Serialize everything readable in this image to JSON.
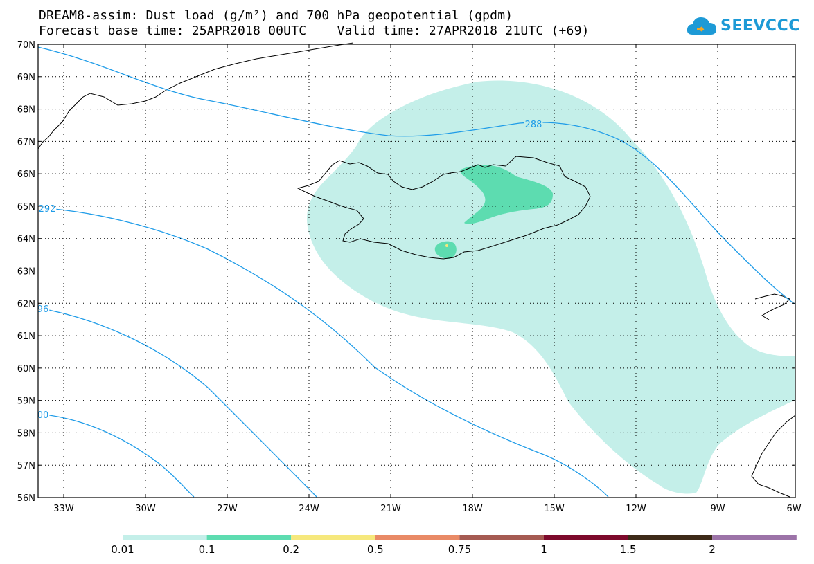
{
  "title": {
    "line1": "DREAM8-assim: Dust load (g/m²) and 700 hPa geopotential (gpdm)",
    "line2": "Forecast base time: 25APR2018 00UTC    Valid time: 27APR2018 21UTC (+69)"
  },
  "logo": {
    "text": "SEEVCCC",
    "icon": "cloud-icon",
    "color": "#1d9ad6"
  },
  "map": {
    "lat_labels": [
      "70N",
      "69N",
      "68N",
      "67N",
      "66N",
      "65N",
      "64N",
      "63N",
      "62N",
      "61N",
      "60N",
      "59N",
      "58N",
      "57N",
      "56N"
    ],
    "lon_labels": [
      "33W",
      "30W",
      "27W",
      "24W",
      "21W",
      "18W",
      "15W",
      "12W",
      "9W",
      "6W"
    ],
    "contour_labels": [
      "288",
      "292",
      "96",
      "00"
    ],
    "contour_color": "#1f9ce8",
    "dust_colors": {
      "light": "#c4efe9",
      "medium": "#5ddcb0",
      "yellow": "#f6e87c"
    }
  },
  "legend": {
    "labels": [
      "0.01",
      "0.1",
      "0.2",
      "0.5",
      "0.75",
      "1",
      "1.5",
      "2"
    ],
    "colors": [
      "#c4efe9",
      "#5ddcb0",
      "#f6e87c",
      "#e98a66",
      "#a55a52",
      "#7d0a2c",
      "#3d2a18",
      "#9c73a8"
    ]
  }
}
